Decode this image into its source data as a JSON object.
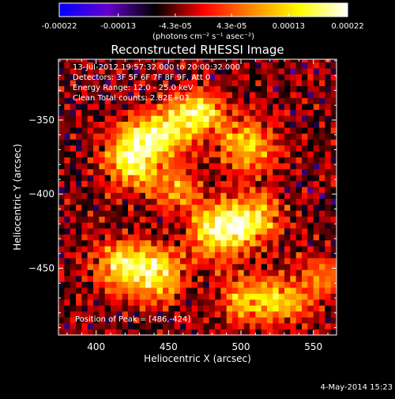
{
  "colorbar": {
    "tick_labels": [
      "-0.00022",
      "-0.00013",
      "-4.3e-05",
      "4.3e-05",
      "0.00013",
      "0.00022"
    ],
    "tick_values": [
      -0.00022,
      -0.00013,
      -4.3e-05,
      4.3e-05,
      0.00013,
      0.00022
    ],
    "range": [
      -0.00022,
      0.00022
    ],
    "unit_label": "(photons cm⁻² s⁻¹ asec⁻²)",
    "colormap": [
      "#0000ff",
      "#6600cc",
      "#000000",
      "#ff0000",
      "#ff8800",
      "#ffff00",
      "#ffffff"
    ]
  },
  "chart_data": {
    "type": "heatmap",
    "title": "Reconstructed RHESSI Image",
    "xlabel": "Heliocentric X (arcsec)",
    "ylabel": "Heliocentric Y (arcsec)",
    "xlim": [
      374,
      566
    ],
    "ylim": [
      -495,
      -309
    ],
    "x_ticks": [
      400,
      450,
      500,
      550
    ],
    "x_tick_labels": [
      "400",
      "450",
      "500",
      "550"
    ],
    "y_ticks": [
      -350,
      -400,
      -450
    ],
    "y_tick_labels": [
      "−350",
      "−400",
      "−450"
    ],
    "annotations": [
      "13-Jul-2012 19:57:32.000 to 20:00:32.000",
      "Detectors: 3F 5F 6F 7F 8F 9F, Att 0",
      "Energy Range: 12.0 - 25.0 keV",
      "Clean    Total counts: 2.82E+03"
    ],
    "peak_label": "Position of Peak = [486,-424]",
    "peak": [
      486,
      -424
    ],
    "pixel_size_arcsec": 4,
    "emission_blobs": [
      {
        "x": 425,
        "y": -375,
        "amp": 1.0,
        "sx": 12,
        "sy": 14
      },
      {
        "x": 445,
        "y": -360,
        "amp": 0.85,
        "sx": 14,
        "sy": 10
      },
      {
        "x": 470,
        "y": -345,
        "amp": 0.9,
        "sx": 14,
        "sy": 10
      },
      {
        "x": 505,
        "y": -368,
        "amp": 0.75,
        "sx": 14,
        "sy": 12
      },
      {
        "x": 455,
        "y": -395,
        "amp": 0.55,
        "sx": 12,
        "sy": 10
      },
      {
        "x": 486,
        "y": -424,
        "amp": 1.1,
        "sx": 14,
        "sy": 12
      },
      {
        "x": 510,
        "y": -415,
        "amp": 0.7,
        "sx": 12,
        "sy": 12
      },
      {
        "x": 420,
        "y": -448,
        "amp": 0.9,
        "sx": 14,
        "sy": 12
      },
      {
        "x": 445,
        "y": -455,
        "amp": 0.75,
        "sx": 12,
        "sy": 12
      },
      {
        "x": 500,
        "y": -470,
        "amp": 0.55,
        "sx": 12,
        "sy": 12
      },
      {
        "x": 528,
        "y": -472,
        "amp": 0.7,
        "sx": 14,
        "sy": 10
      },
      {
        "x": 555,
        "y": -455,
        "amp": 0.5,
        "sx": 10,
        "sy": 10
      }
    ]
  },
  "footer": {
    "timestamp": "4-May-2014 15:23"
  }
}
